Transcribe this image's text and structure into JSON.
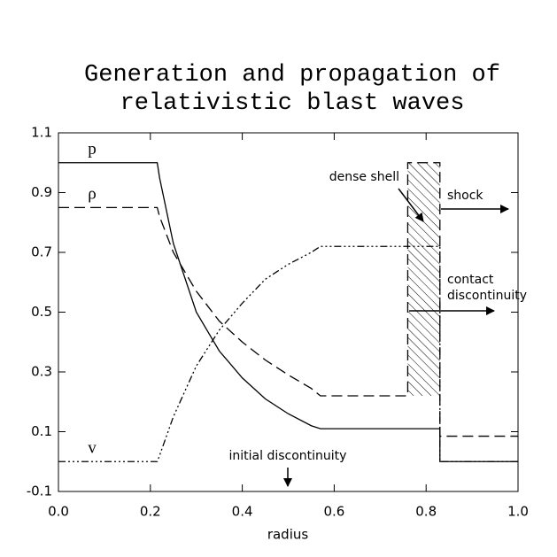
{
  "chart_data": {
    "type": "line",
    "title": [
      "Generation and propagation of",
      "relativistic blast waves"
    ],
    "xlabel": "radius",
    "xlim": [
      0,
      1
    ],
    "ylim": [
      -0.1,
      1.1
    ],
    "xticks": [
      {
        "value": 0,
        "label": "0.0"
      },
      0.2,
      0.4,
      0.6,
      0.8,
      {
        "value": 1,
        "label": "1.0"
      }
    ],
    "yticks": [
      -0.1,
      0.1,
      0.3,
      0.5,
      0.7,
      0.9,
      1.1
    ],
    "x": [
      0,
      0.215,
      0.22,
      0.25,
      0.3,
      0.35,
      0.4,
      0.45,
      0.5,
      0.55,
      0.57,
      0.76,
      0.76,
      0.83,
      0.83,
      1.0
    ],
    "series": [
      {
        "name": "p",
        "color": "#000000",
        "dash": "none",
        "values": [
          1.0,
          1.0,
          0.95,
          0.73,
          0.5,
          0.37,
          0.28,
          0.21,
          0.16,
          0.12,
          0.11,
          0.11,
          0.11,
          0.11,
          0.0,
          0.0
        ]
      },
      {
        "name": "ρ",
        "color": "#000000",
        "dash": "12,6",
        "values": [
          0.85,
          0.85,
          0.82,
          0.7,
          0.57,
          0.47,
          0.4,
          0.34,
          0.29,
          0.245,
          0.22,
          0.22,
          1.0,
          1.0,
          0.085,
          0.085
        ]
      },
      {
        "name": "v",
        "color": "#000000",
        "dash": "8,3,2,3,2,3,2,3",
        "values": [
          0.0,
          0.0,
          0.02,
          0.15,
          0.32,
          0.44,
          0.53,
          0.61,
          0.66,
          0.7,
          0.72,
          0.72,
          0.72,
          0.72,
          0.0,
          0.0
        ]
      }
    ],
    "annotations": [
      "dense shell",
      "shock",
      [
        "contact",
        "discontinuity"
      ],
      "initial discontinuity"
    ]
  }
}
